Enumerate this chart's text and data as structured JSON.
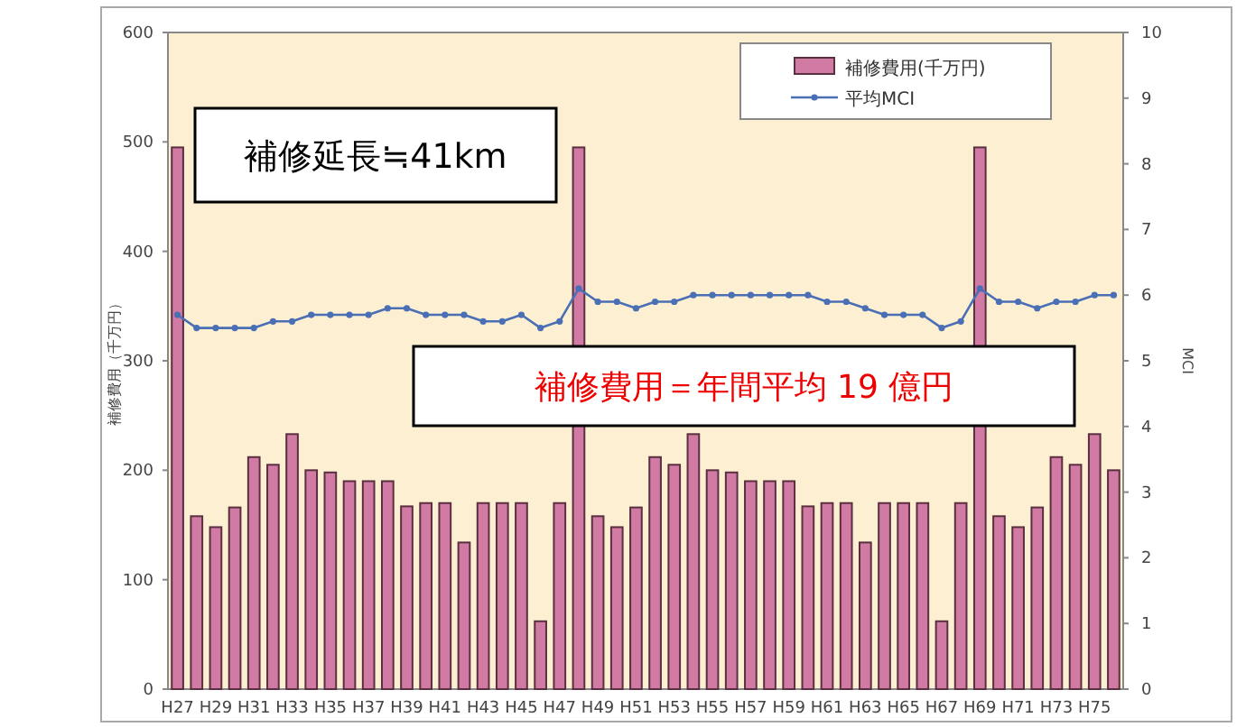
{
  "chart_data": {
    "type": "bar",
    "categories": [
      "H27",
      null,
      "H29",
      null,
      "H31",
      null,
      "H33",
      null,
      "H35",
      null,
      "H37",
      null,
      "H39",
      null,
      "H41",
      null,
      "H43",
      null,
      "H45",
      null,
      "H47",
      null,
      "H49",
      null,
      "H51",
      null,
      "H53",
      null,
      "H55",
      null,
      "H57",
      null,
      "H59",
      null,
      "H61",
      null,
      "H63",
      null,
      "H65",
      null,
      "H67",
      null,
      "H69",
      null,
      "H71",
      null,
      "H73",
      null,
      "H75",
      null
    ],
    "series": [
      {
        "name": "補修費用(千万円)",
        "type": "bar",
        "color": "#d07aa4",
        "values": [
          495,
          158,
          148,
          166,
          212,
          205,
          233,
          200,
          198,
          190,
          190,
          190,
          167,
          170,
          170,
          134,
          170,
          170,
          170,
          62,
          170,
          495,
          158,
          148,
          166,
          212,
          205,
          233,
          200,
          198,
          190,
          190,
          190,
          167,
          170,
          170,
          134,
          170,
          170,
          170,
          62,
          170,
          495,
          158,
          148,
          166,
          212,
          205,
          233,
          200
        ]
      },
      {
        "name": "平均MCI",
        "type": "line",
        "axis": "y2",
        "color": "#4a6fb5",
        "marker": "circle",
        "values": [
          5.7,
          5.5,
          5.5,
          5.5,
          5.5,
          5.6,
          5.6,
          5.7,
          5.7,
          5.7,
          5.7,
          5.8,
          5.8,
          5.7,
          5.7,
          5.7,
          5.6,
          5.6,
          5.7,
          5.5,
          5.6,
          6.1,
          5.9,
          5.9,
          5.8,
          5.9,
          5.9,
          6,
          6,
          6,
          6,
          6,
          6,
          6,
          5.9,
          5.9,
          5.8,
          5.7,
          5.7,
          5.7,
          5.5,
          5.6,
          6.1,
          5.9,
          5.9,
          5.8,
          5.9,
          5.9,
          6,
          6
        ]
      }
    ],
    "ylabel": "補修費用（千万円）",
    "y2label": "MCI",
    "ylim": [
      0,
      600
    ],
    "yticks": [
      0,
      100,
      200,
      300,
      400,
      500,
      600
    ],
    "y2lim": [
      0,
      10
    ],
    "y2ticks": [
      0,
      1,
      2,
      3,
      4,
      5,
      6,
      7,
      8,
      9,
      10
    ],
    "legend": "top right",
    "grid": false,
    "annotations": [
      "補修延長≒41km",
      "補修費用＝年間平均 19 億円"
    ]
  }
}
